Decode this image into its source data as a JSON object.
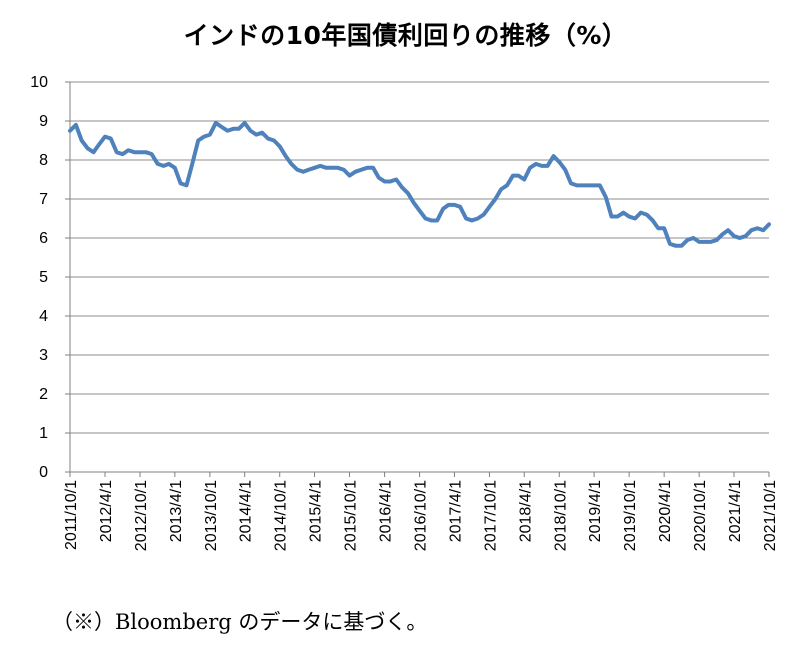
{
  "chart_data": {
    "type": "line",
    "title": "インドの10年国債利回りの推移（%）",
    "footnote": "（※）Bloomberg のデータに基づく。",
    "ylim": [
      0,
      10
    ],
    "yticks": [
      "0",
      "1",
      "2",
      "3",
      "4",
      "5",
      "6",
      "7",
      "8",
      "9",
      "10"
    ],
    "grid": true,
    "xlim": [
      "2011-10-01",
      "2021-10-01"
    ],
    "xticks": [
      "2011/10/1",
      "2012/4/1",
      "2012/10/1",
      "2013/4/1",
      "2013/10/1",
      "2014/4/1",
      "2014/10/1",
      "2015/4/1",
      "2015/10/1",
      "2016/4/1",
      "2016/10/1",
      "2017/4/1",
      "2017/10/1",
      "2018/4/1",
      "2018/10/1",
      "2019/4/1",
      "2019/10/1",
      "2020/4/1",
      "2020/10/1",
      "2021/4/1",
      "2021/10/1"
    ],
    "line_color": "#4F81BD",
    "series": [
      {
        "x": [
          "2011-10-01",
          "2011-11-01",
          "2011-12-01",
          "2012-01-01",
          "2012-02-01",
          "2012-03-01",
          "2012-04-01",
          "2012-05-01",
          "2012-06-01",
          "2012-07-01",
          "2012-08-01",
          "2012-09-01",
          "2012-10-01",
          "2012-11-01",
          "2012-12-01",
          "2013-01-01",
          "2013-02-01",
          "2013-03-01",
          "2013-04-01",
          "2013-05-01",
          "2013-06-01",
          "2013-07-01",
          "2013-08-01",
          "2013-09-01",
          "2013-10-01",
          "2013-11-01",
          "2013-12-01",
          "2014-01-01",
          "2014-02-01",
          "2014-03-01",
          "2014-04-01",
          "2014-05-01",
          "2014-06-01",
          "2014-07-01",
          "2014-08-01",
          "2014-09-01",
          "2014-10-01",
          "2014-11-01",
          "2014-12-01",
          "2015-01-01",
          "2015-02-01",
          "2015-03-01",
          "2015-04-01",
          "2015-05-01",
          "2015-06-01",
          "2015-07-01",
          "2015-08-01",
          "2015-09-01",
          "2015-10-01",
          "2015-11-01",
          "2015-12-01",
          "2016-01-01",
          "2016-02-01",
          "2016-03-01",
          "2016-04-01",
          "2016-05-01",
          "2016-06-01",
          "2016-07-01",
          "2016-08-01",
          "2016-09-01",
          "2016-10-01",
          "2016-11-01",
          "2016-12-01",
          "2017-01-01",
          "2017-02-01",
          "2017-03-01",
          "2017-04-01",
          "2017-05-01",
          "2017-06-01",
          "2017-07-01",
          "2017-08-01",
          "2017-09-01",
          "2017-10-01",
          "2017-11-01",
          "2017-12-01",
          "2018-01-01",
          "2018-02-01",
          "2018-03-01",
          "2018-04-01",
          "2018-05-01",
          "2018-06-01",
          "2018-07-01",
          "2018-08-01",
          "2018-09-01",
          "2018-10-01",
          "2018-11-01",
          "2018-12-01",
          "2019-01-01",
          "2019-02-01",
          "2019-03-01",
          "2019-04-01",
          "2019-05-01",
          "2019-06-01",
          "2019-07-01",
          "2019-08-01",
          "2019-09-01",
          "2019-10-01",
          "2019-11-01",
          "2019-12-01",
          "2020-01-01",
          "2020-02-01",
          "2020-03-01",
          "2020-04-01",
          "2020-05-01",
          "2020-06-01",
          "2020-07-01",
          "2020-08-01",
          "2020-09-01",
          "2020-10-01",
          "2020-11-01",
          "2020-12-01",
          "2021-01-01",
          "2021-02-01",
          "2021-03-01",
          "2021-04-01",
          "2021-05-01",
          "2021-06-01",
          "2021-07-01",
          "2021-08-01",
          "2021-09-01",
          "2021-10-01"
        ],
        "values": [
          8.75,
          8.9,
          8.5,
          8.3,
          8.2,
          8.4,
          8.6,
          8.55,
          8.2,
          8.15,
          8.25,
          8.2,
          8.2,
          8.2,
          8.15,
          7.9,
          7.85,
          7.9,
          7.8,
          7.4,
          7.35,
          7.9,
          8.5,
          8.6,
          8.65,
          8.95,
          8.85,
          8.75,
          8.8,
          8.8,
          8.95,
          8.75,
          8.65,
          8.7,
          8.55,
          8.5,
          8.35,
          8.1,
          7.9,
          7.75,
          7.7,
          7.75,
          7.8,
          7.85,
          7.8,
          7.8,
          7.8,
          7.75,
          7.6,
          7.7,
          7.75,
          7.8,
          7.8,
          7.55,
          7.45,
          7.45,
          7.5,
          7.3,
          7.15,
          6.9,
          6.7,
          6.5,
          6.45,
          6.45,
          6.75,
          6.85,
          6.85,
          6.8,
          6.5,
          6.45,
          6.5,
          6.6,
          6.8,
          7.0,
          7.25,
          7.35,
          7.6,
          7.6,
          7.5,
          7.8,
          7.9,
          7.85,
          7.85,
          8.1,
          7.95,
          7.75,
          7.4,
          7.35,
          7.35,
          7.35,
          7.35,
          7.35,
          7.05,
          6.55,
          6.55,
          6.65,
          6.55,
          6.5,
          6.65,
          6.6,
          6.45,
          6.25,
          6.25,
          5.85,
          5.8,
          5.8,
          5.95,
          6.0,
          5.9,
          5.9,
          5.9,
          5.95,
          6.1,
          6.2,
          6.05,
          6.0,
          6.05,
          6.2,
          6.25,
          6.2,
          6.35
        ]
      }
    ]
  }
}
